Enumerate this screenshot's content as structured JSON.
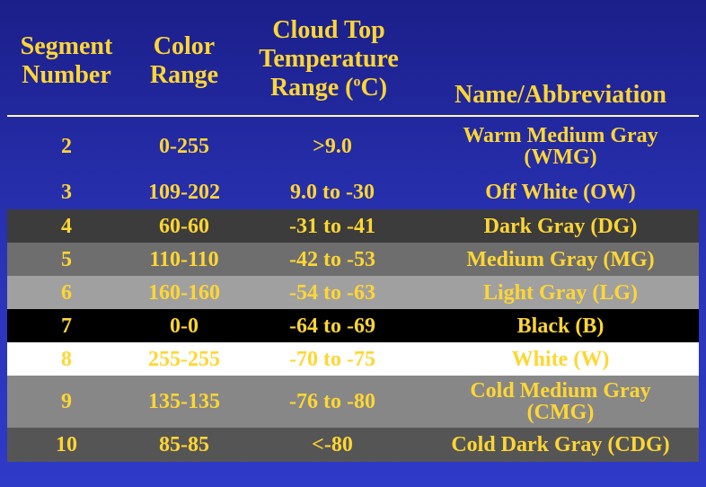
{
  "header": {
    "col1": [
      "Segment",
      "Number"
    ],
    "col2": [
      "Color",
      "Range"
    ],
    "col3": [
      "Cloud Top",
      "Temperature"
    ],
    "col3_range_prefix": "Range (",
    "col3_degree": "o",
    "col3_range_suffix": "C)",
    "col4": "Name/Abbreviation"
  },
  "rows": [
    {
      "segment": "2",
      "color_range": "0-255",
      "temp_range": ">9.0",
      "name": [
        "Warm Medium Gray",
        "(WMG)"
      ],
      "bg": "transparent",
      "fg": "#ffd633"
    },
    {
      "segment": "3",
      "color_range": "109-202",
      "temp_range": "9.0 to -30",
      "name": [
        "Off White (OW)"
      ],
      "bg": "transparent",
      "fg": "#ffd633"
    },
    {
      "segment": "4",
      "color_range": "60-60",
      "temp_range": "-31 to -41",
      "name": [
        "Dark Gray (DG)"
      ],
      "bg": "#3c3c3c",
      "fg": "#ffd633"
    },
    {
      "segment": "5",
      "color_range": "110-110",
      "temp_range": "-42 to -53",
      "name": [
        "Medium Gray (MG)"
      ],
      "bg": "#6e6e6e",
      "fg": "#ffd633"
    },
    {
      "segment": "6",
      "color_range": "160-160",
      "temp_range": "-54 to -63",
      "name": [
        "Light Gray (LG)"
      ],
      "bg": "#a0a0a0",
      "fg": "#ffd633"
    },
    {
      "segment": "7",
      "color_range": "0-0",
      "temp_range": "-64 to -69",
      "name": [
        "Black (B)"
      ],
      "bg": "#000000",
      "fg": "#ffd633"
    },
    {
      "segment": "8",
      "color_range": "255-255",
      "temp_range": "-70 to -75",
      "name": [
        "White (W)"
      ],
      "bg": "#ffffff",
      "fg": "#ffd633"
    },
    {
      "segment": "9",
      "color_range": "135-135",
      "temp_range": "-76 to -80",
      "name": [
        "Cold Medium Gray",
        "(CMG)"
      ],
      "bg": "#878787",
      "fg": "#ffd633"
    },
    {
      "segment": "10",
      "color_range": "85-85",
      "temp_range": "<-80",
      "name": [
        "Cold Dark Gray (CDG)"
      ],
      "bg": "#555555",
      "fg": "#ffd633"
    }
  ]
}
